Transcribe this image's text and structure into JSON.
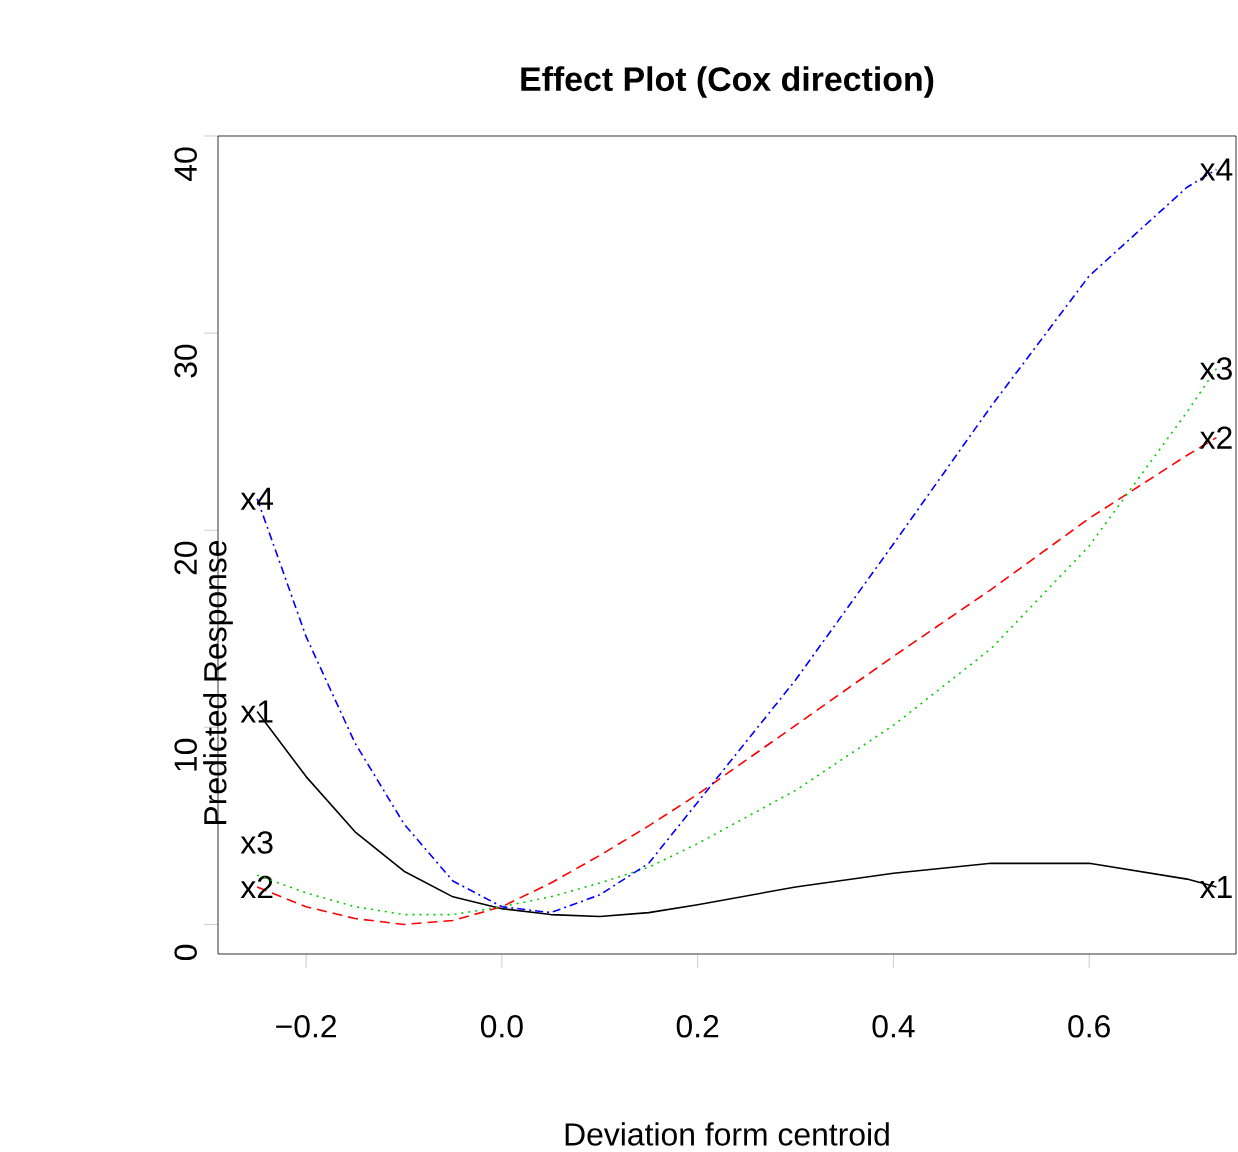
{
  "chart_data": {
    "type": "line",
    "title": "Effect Plot (Cox direction)",
    "xlabel": "Deviation form centroid",
    "ylabel": "Predicted Response",
    "xlim": [
      -0.29,
      0.75
    ],
    "ylim": [
      -1.5,
      40
    ],
    "xticks": [
      {
        "value": -0.2,
        "label": "−0.2"
      },
      {
        "value": 0,
        "label": "0.0"
      },
      {
        "value": 0.2,
        "label": "0.2"
      },
      {
        "value": 0.4,
        "label": "0.4"
      },
      {
        "value": 0.6,
        "label": "0.6"
      }
    ],
    "yticks": [
      0,
      10,
      20,
      30,
      40
    ],
    "x": [
      -0.25,
      -0.2,
      -0.15,
      -0.1,
      -0.05,
      0,
      0.05,
      0.1,
      0.15,
      0.2,
      0.3,
      0.4,
      0.5,
      0.6,
      0.7,
      0.73
    ],
    "series": [
      {
        "name": "x1",
        "color": "#000000",
        "line_style": "solid",
        "values": [
          10.8,
          7.5,
          4.7,
          2.7,
          1.4,
          0.8,
          0.5,
          0.4,
          0.6,
          1.0,
          1.9,
          2.6,
          3.1,
          3.1,
          2.3,
          1.9
        ]
      },
      {
        "name": "x2",
        "color": "#ff0000",
        "line_style": "dashed",
        "values": [
          1.9,
          0.9,
          0.3,
          0.0,
          0.2,
          0.9,
          2.1,
          3.5,
          5.0,
          6.6,
          10.1,
          13.6,
          17.0,
          20.6,
          23.8,
          24.7
        ]
      },
      {
        "name": "x3",
        "color": "#00cd00",
        "line_style": "dotted",
        "values": [
          2.5,
          1.6,
          0.9,
          0.5,
          0.5,
          0.9,
          1.4,
          2.1,
          2.9,
          4.1,
          6.8,
          10.1,
          14.0,
          19.2,
          26.0,
          28.2
        ]
      },
      {
        "name": "x4",
        "color": "#0000ff",
        "line_style": "dashdot",
        "values": [
          21.6,
          14.6,
          9.2,
          5.1,
          2.2,
          0.9,
          0.6,
          1.5,
          3.1,
          6.2,
          12.4,
          19.3,
          26.3,
          32.9,
          37.4,
          38.3
        ]
      }
    ],
    "grid": false
  }
}
